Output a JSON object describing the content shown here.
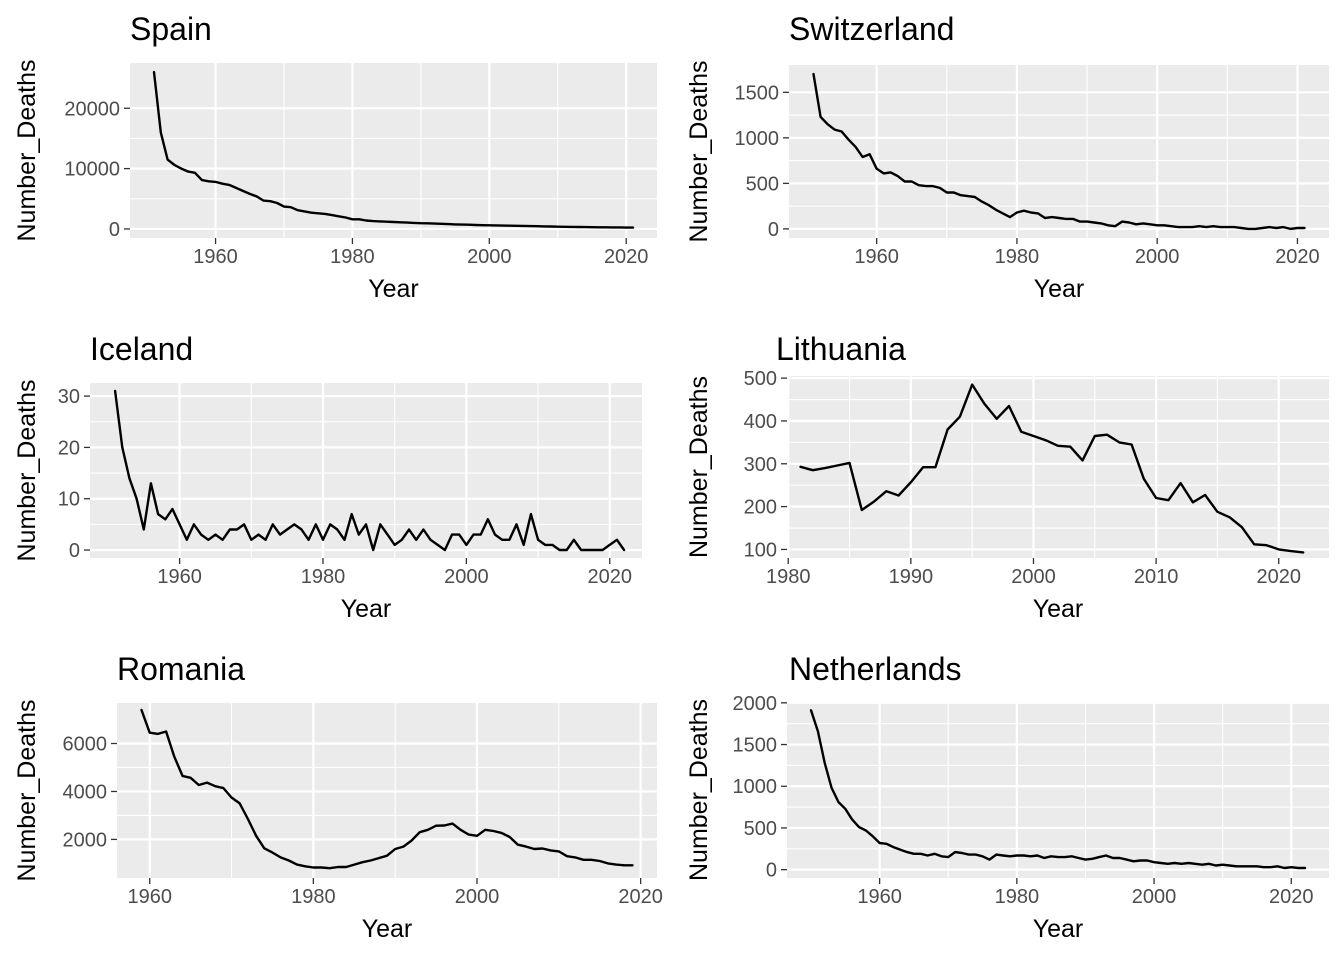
{
  "chart_data": [
    {
      "type": "line",
      "title": "Spain",
      "xlabel": "Year",
      "ylabel": "Number_Deaths",
      "xlim": [
        1947.5,
        2024.5
      ],
      "ylim": [
        -1500,
        27500
      ],
      "xticks": [
        1960,
        1980,
        2000,
        2020
      ],
      "xtick_labels": [
        "1960",
        "1980",
        "2000",
        "2020"
      ],
      "yticks": [
        0,
        10000,
        20000
      ],
      "ytick_labels": [
        "0",
        "10000",
        "20000"
      ],
      "x": [
        1951,
        1952,
        1953,
        1954,
        1955,
        1956,
        1957,
        1958,
        1959,
        1960,
        1961,
        1962,
        1963,
        1964,
        1965,
        1966,
        1967,
        1968,
        1969,
        1970,
        1971,
        1972,
        1973,
        1974,
        1975,
        1976,
        1977,
        1978,
        1979,
        1980,
        1981,
        1982,
        1983,
        1984,
        1985,
        1986,
        1987,
        1988,
        1989,
        1990,
        1991,
        1992,
        1993,
        1994,
        1995,
        1996,
        1997,
        1998,
        1999,
        2000,
        2001,
        2002,
        2003,
        2004,
        2005,
        2006,
        2007,
        2008,
        2009,
        2010,
        2011,
        2012,
        2013,
        2014,
        2015,
        2016,
        2017,
        2018,
        2019,
        2020,
        2021
      ],
      "y": [
        26000,
        16000,
        11500,
        10600,
        10000,
        9500,
        9300,
        8100,
        7900,
        7800,
        7500,
        7300,
        6800,
        6300,
        5800,
        5400,
        4700,
        4600,
        4300,
        3700,
        3600,
        3100,
        2900,
        2700,
        2600,
        2500,
        2300,
        2100,
        1900,
        1600,
        1600,
        1400,
        1300,
        1250,
        1200,
        1150,
        1100,
        1050,
        1000,
        950,
        930,
        880,
        850,
        800,
        750,
        720,
        700,
        650,
        620,
        600,
        580,
        560,
        540,
        520,
        500,
        480,
        450,
        420,
        400,
        380,
        360,
        340,
        320,
        300,
        290,
        280,
        270,
        260,
        250,
        230,
        220
      ]
    },
    {
      "type": "line",
      "title": "Switzerland",
      "xlabel": "Year",
      "ylabel": "Number_Deaths",
      "xlim": [
        1947.5,
        2024.5
      ],
      "ylim": [
        -100,
        1800
      ],
      "xticks": [
        1960,
        1980,
        2000,
        2020
      ],
      "xtick_labels": [
        "1960",
        "1980",
        "2000",
        "2020"
      ],
      "yticks": [
        0,
        500,
        1000,
        1500
      ],
      "ytick_labels": [
        "0",
        "500",
        "1000",
        "1500"
      ],
      "x": [
        1951,
        1952,
        1953,
        1954,
        1955,
        1956,
        1957,
        1958,
        1959,
        1960,
        1961,
        1962,
        1963,
        1964,
        1965,
        1966,
        1967,
        1968,
        1969,
        1970,
        1971,
        1972,
        1973,
        1974,
        1975,
        1976,
        1977,
        1978,
        1979,
        1980,
        1981,
        1982,
        1983,
        1984,
        1985,
        1986,
        1987,
        1988,
        1989,
        1990,
        1991,
        1992,
        1993,
        1994,
        1995,
        1996,
        1997,
        1998,
        1999,
        2000,
        2001,
        2002,
        2003,
        2004,
        2005,
        2006,
        2007,
        2008,
        2009,
        2010,
        2011,
        2012,
        2013,
        2014,
        2015,
        2016,
        2017,
        2018,
        2019,
        2020,
        2021
      ],
      "y": [
        1700,
        1230,
        1150,
        1090,
        1070,
        980,
        900,
        790,
        820,
        660,
        610,
        620,
        580,
        520,
        520,
        480,
        470,
        470,
        450,
        400,
        400,
        370,
        360,
        350,
        300,
        260,
        210,
        170,
        130,
        180,
        200,
        180,
        170,
        120,
        130,
        120,
        110,
        110,
        80,
        80,
        70,
        60,
        40,
        30,
        80,
        70,
        50,
        60,
        50,
        40,
        40,
        30,
        20,
        20,
        20,
        30,
        20,
        30,
        20,
        20,
        20,
        10,
        0,
        0,
        10,
        20,
        10,
        20,
        0,
        10,
        10
      ]
    },
    {
      "type": "line",
      "title": "Iceland",
      "xlabel": "Year",
      "ylabel": "Number_Deaths",
      "xlim": [
        1947.5,
        2024.5
      ],
      "ylim": [
        -1.55,
        32.55
      ],
      "xticks": [
        1960,
        1980,
        2000,
        2020
      ],
      "xtick_labels": [
        "1960",
        "1980",
        "2000",
        "2020"
      ],
      "yticks": [
        0,
        10,
        20,
        30
      ],
      "ytick_labels": [
        "0",
        "10",
        "20",
        "30"
      ],
      "x": [
        1951,
        1952,
        1953,
        1954,
        1955,
        1956,
        1957,
        1958,
        1959,
        1960,
        1961,
        1962,
        1963,
        1964,
        1965,
        1966,
        1967,
        1968,
        1969,
        1970,
        1971,
        1972,
        1973,
        1974,
        1975,
        1976,
        1977,
        1978,
        1979,
        1980,
        1981,
        1982,
        1983,
        1984,
        1985,
        1986,
        1987,
        1988,
        1989,
        1990,
        1991,
        1992,
        1993,
        1994,
        1995,
        1996,
        1997,
        1998,
        1999,
        2000,
        2001,
        2002,
        2003,
        2004,
        2005,
        2006,
        2007,
        2008,
        2009,
        2010,
        2011,
        2012,
        2013,
        2014,
        2015,
        2016,
        2017,
        2018,
        2019,
        2020,
        2021,
        2022
      ],
      "y": [
        31,
        20,
        14,
        10,
        4,
        13,
        7,
        6,
        8,
        5,
        2,
        5,
        3,
        2,
        3,
        2,
        4,
        4,
        5,
        2,
        3,
        2,
        5,
        3,
        4,
        5,
        4,
        2,
        5,
        2,
        5,
        4,
        2,
        7,
        3,
        5,
        0,
        5,
        3,
        1,
        2,
        4,
        2,
        4,
        2,
        1,
        0,
        3,
        3,
        1,
        3,
        3,
        6,
        3,
        2,
        2,
        5,
        1,
        7,
        2,
        1,
        1,
        0,
        0,
        2,
        0,
        0,
        0,
        0,
        1,
        2,
        0
      ]
    },
    {
      "type": "line",
      "title": "Lithuania",
      "xlabel": "Year",
      "ylabel": "Number_Deaths",
      "xlim": [
        1979.9,
        2024.1
      ],
      "ylim": [
        80,
        505
      ],
      "xticks": [
        1980,
        1990,
        2000,
        2010,
        2020
      ],
      "xtick_labels": [
        "1980",
        "1990",
        "2000",
        "2010",
        "2020"
      ],
      "yticks": [
        100,
        200,
        300,
        400,
        500
      ],
      "ytick_labels": [
        "100",
        "200",
        "300",
        "400",
        "500"
      ],
      "x": [
        1981,
        1982,
        1983,
        1984,
        1985,
        1986,
        1987,
        1988,
        1989,
        1990,
        1991,
        1992,
        1993,
        1994,
        1995,
        1996,
        1997,
        1998,
        1999,
        2000,
        2001,
        2002,
        2003,
        2004,
        2005,
        2006,
        2007,
        2008,
        2009,
        2010,
        2011,
        2012,
        2013,
        2014,
        2015,
        2016,
        2017,
        2018,
        2019,
        2020,
        2021,
        2022
      ],
      "y": [
        293,
        285,
        290,
        296,
        302,
        192,
        212,
        236,
        226,
        257,
        292,
        292,
        380,
        410,
        485,
        440,
        405,
        435,
        375,
        365,
        355,
        342,
        340,
        308,
        365,
        368,
        350,
        345,
        265,
        220,
        215,
        255,
        210,
        227,
        188,
        175,
        152,
        112,
        110,
        100,
        96,
        93
      ]
    },
    {
      "type": "line",
      "title": "Romania",
      "xlabel": "Year",
      "ylabel": "Number_Deaths",
      "xlim": [
        1956,
        2022
      ],
      "ylim": [
        390,
        7690
      ],
      "xticks": [
        1960,
        1980,
        2000,
        2020
      ],
      "xtick_labels": [
        "1960",
        "1980",
        "2000",
        "2020"
      ],
      "yticks": [
        2000,
        4000,
        6000
      ],
      "ytick_labels": [
        "2000",
        "4000",
        "6000"
      ],
      "x": [
        1959,
        1960,
        1961,
        1962,
        1963,
        1964,
        1965,
        1966,
        1967,
        1968,
        1969,
        1970,
        1971,
        1972,
        1973,
        1974,
        1975,
        1976,
        1977,
        1978,
        1979,
        1980,
        1981,
        1982,
        1983,
        1984,
        1985,
        1986,
        1987,
        1988,
        1989,
        1990,
        1991,
        1992,
        1993,
        1994,
        1995,
        1996,
        1997,
        1998,
        1999,
        2000,
        2001,
        2002,
        2003,
        2004,
        2005,
        2006,
        2007,
        2008,
        2009,
        2010,
        2011,
        2012,
        2013,
        2014,
        2015,
        2016,
        2017,
        2018,
        2019
      ],
      "y": [
        7400,
        6450,
        6400,
        6500,
        5450,
        4650,
        4570,
        4270,
        4370,
        4220,
        4140,
        3750,
        3500,
        2850,
        2150,
        1630,
        1450,
        1250,
        1120,
        950,
        880,
        830,
        830,
        800,
        850,
        850,
        950,
        1050,
        1120,
        1220,
        1320,
        1600,
        1700,
        1950,
        2300,
        2400,
        2570,
        2580,
        2660,
        2400,
        2200,
        2150,
        2400,
        2350,
        2270,
        2100,
        1780,
        1700,
        1600,
        1620,
        1540,
        1500,
        1300,
        1250,
        1150,
        1150,
        1100,
        1000,
        950,
        920,
        920
      ]
    },
    {
      "type": "line",
      "title": "Netherlands",
      "xlabel": "Year",
      "ylabel": "Number_Deaths",
      "xlim": [
        1946.5,
        2025.5
      ],
      "ylim": [
        -100,
        2010
      ],
      "xticks": [
        1960,
        1980,
        2000,
        2020
      ],
      "xtick_labels": [
        "1960",
        "1980",
        "2000",
        "2020"
      ],
      "yticks": [
        0,
        500,
        1000,
        1500,
        2000
      ],
      "ytick_labels": [
        "0",
        "500",
        "1000",
        "1500",
        "2000"
      ],
      "x": [
        1950,
        1951,
        1952,
        1953,
        1954,
        1955,
        1956,
        1957,
        1958,
        1959,
        1960,
        1961,
        1962,
        1963,
        1964,
        1965,
        1966,
        1967,
        1968,
        1969,
        1970,
        1971,
        1972,
        1973,
        1974,
        1975,
        1976,
        1977,
        1978,
        1979,
        1980,
        1981,
        1982,
        1983,
        1984,
        1985,
        1986,
        1987,
        1988,
        1989,
        1990,
        1991,
        1992,
        1993,
        1994,
        1995,
        1996,
        1997,
        1998,
        1999,
        2000,
        2001,
        2002,
        2003,
        2004,
        2005,
        2006,
        2007,
        2008,
        2009,
        2010,
        2011,
        2012,
        2013,
        2014,
        2015,
        2016,
        2017,
        2018,
        2019,
        2020,
        2021,
        2022
      ],
      "y": [
        1910,
        1660,
        1280,
        980,
        810,
        730,
        600,
        510,
        470,
        400,
        320,
        310,
        270,
        240,
        210,
        190,
        190,
        170,
        190,
        160,
        150,
        210,
        200,
        180,
        180,
        160,
        120,
        180,
        170,
        160,
        170,
        170,
        160,
        170,
        140,
        160,
        150,
        150,
        160,
        140,
        120,
        130,
        150,
        170,
        140,
        140,
        120,
        100,
        110,
        110,
        90,
        80,
        70,
        80,
        70,
        80,
        70,
        60,
        70,
        50,
        60,
        50,
        40,
        40,
        40,
        40,
        30,
        30,
        40,
        20,
        30,
        20,
        20
      ]
    }
  ]
}
